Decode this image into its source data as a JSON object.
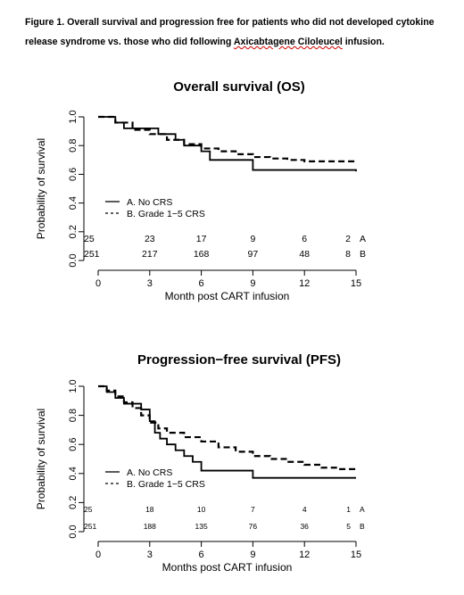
{
  "figure": {
    "caption_part1": "Figure 1.  Overall survival and progression free for patients who did not developed cytokine release syndrome vs. those who did following ",
    "caption_drug": "Axicabtagene Ciloleucel",
    "caption_part2": " infusion."
  },
  "chart_data": [
    {
      "type": "line",
      "title": "Overall survival (OS)",
      "xlabel": "Month post CART infusion",
      "ylabel": "Probability of survival",
      "xlim": [
        0,
        15
      ],
      "ylim": [
        0,
        1
      ],
      "xticks": [
        "0",
        "3",
        "6",
        "9",
        "12",
        "15"
      ],
      "yticks": [
        "0.0",
        "0.2",
        "0.4",
        "0.6",
        "0.8",
        "1.0"
      ],
      "legend": [
        "A. No CRS",
        "B. Grade 1−5 CRS"
      ],
      "legend_placement": "left-middle",
      "series": [
        {
          "name": "A. No CRS",
          "style": "solid",
          "x": [
            0,
            1,
            1.5,
            2,
            3.5,
            4.5,
            5,
            6,
            6.5,
            9,
            15
          ],
          "y": [
            1.0,
            0.96,
            0.92,
            0.92,
            0.88,
            0.84,
            0.8,
            0.76,
            0.7,
            0.63,
            0.62
          ]
        },
        {
          "name": "B. Grade 1−5 CRS",
          "style": "dashed",
          "x": [
            0,
            1,
            2,
            3,
            4,
            5,
            6,
            7,
            8,
            9,
            10,
            11,
            12,
            13,
            14,
            15
          ],
          "y": [
            1.0,
            0.96,
            0.91,
            0.88,
            0.84,
            0.81,
            0.78,
            0.76,
            0.74,
            0.72,
            0.71,
            0.7,
            0.69,
            0.69,
            0.69,
            0.68
          ]
        }
      ],
      "at_risk": {
        "times": [
          0,
          3,
          6,
          9,
          12,
          15
        ],
        "rows": [
          {
            "label": "A",
            "values": [
              "25",
              "23",
              "17",
              "9",
              "6",
              "2"
            ]
          },
          {
            "label": "B",
            "values": [
              "251",
              "217",
              "168",
              "97",
              "48",
              "8"
            ]
          }
        ]
      }
    },
    {
      "type": "line",
      "title": "Progression−free survival (PFS)",
      "xlabel": "Months post CART infusion",
      "ylabel": "Probability of survival",
      "xlim": [
        0,
        15
      ],
      "ylim": [
        0,
        1
      ],
      "xticks": [
        "0",
        "3",
        "6",
        "9",
        "12",
        "15"
      ],
      "yticks": [
        "0.0",
        "0.2",
        "0.4",
        "0.6",
        "0.8",
        "1.0"
      ],
      "legend": [
        "A. No CRS",
        "B. Grade 1−5 CRS"
      ],
      "legend_placement": "left-middle",
      "series": [
        {
          "name": "A. No CRS",
          "style": "solid",
          "x": [
            0,
            0.5,
            1,
            1.5,
            2.5,
            3,
            3.3,
            3.6,
            4,
            4.5,
            5,
            5.5,
            6,
            9,
            15
          ],
          "y": [
            1.0,
            0.96,
            0.92,
            0.88,
            0.84,
            0.76,
            0.68,
            0.64,
            0.6,
            0.56,
            0.52,
            0.48,
            0.42,
            0.37,
            0.37
          ]
        },
        {
          "name": "B. Grade 1−5 CRS",
          "style": "dashed",
          "x": [
            0,
            0.5,
            1,
            1.5,
            2,
            2.5,
            3,
            3.5,
            4,
            5,
            6,
            7,
            8,
            9,
            10,
            11,
            12,
            13,
            14,
            15
          ],
          "y": [
            1.0,
            0.97,
            0.93,
            0.89,
            0.85,
            0.8,
            0.75,
            0.71,
            0.68,
            0.65,
            0.62,
            0.58,
            0.55,
            0.52,
            0.5,
            0.48,
            0.46,
            0.44,
            0.43,
            0.43
          ]
        }
      ],
      "at_risk": {
        "times": [
          0,
          3,
          6,
          9,
          12,
          15
        ],
        "rows": [
          {
            "label": "A",
            "values": [
              "25",
              "18",
              "10",
              "7",
              "4",
              "1"
            ]
          },
          {
            "label": "B",
            "values": [
              "251",
              "188",
              "135",
              "76",
              "36",
              "5"
            ]
          }
        ]
      }
    }
  ]
}
